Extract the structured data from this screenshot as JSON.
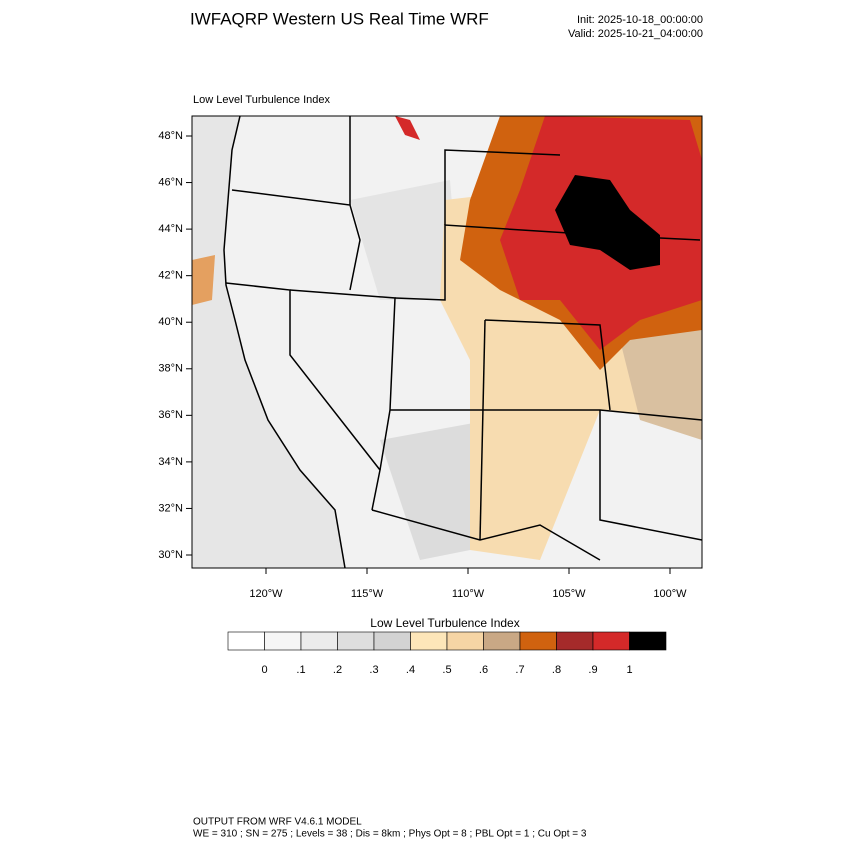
{
  "title": "IWFAQRP Western US Real Time WRF",
  "init": "Init: 2025-10-18_00:00:00",
  "valid": "Valid: 2025-10-21_04:00:00",
  "map": {
    "title": "Low Level Turbulence Index",
    "lat_ticks": [
      {
        "value": 30,
        "label": "30°N"
      },
      {
        "value": 32,
        "label": "32°N"
      },
      {
        "value": 34,
        "label": "34°N"
      },
      {
        "value": 36,
        "label": "36°N"
      },
      {
        "value": 38,
        "label": "38°N"
      },
      {
        "value": 40,
        "label": "40°N"
      },
      {
        "value": 42,
        "label": "42°N"
      },
      {
        "value": 44,
        "label": "44°N"
      },
      {
        "value": 46,
        "label": "46°N"
      },
      {
        "value": 48,
        "label": "48°N"
      }
    ],
    "lon_ticks": [
      {
        "value": -120,
        "label": "120°W"
      },
      {
        "value": -115,
        "label": "115°W"
      },
      {
        "value": -110,
        "label": "110°W"
      },
      {
        "value": -105,
        "label": "105°W"
      },
      {
        "value": -100,
        "label": "100°W"
      }
    ]
  },
  "colorbar": {
    "title": "Low Level Turbulence Index",
    "colors": [
      "#ffffff",
      "#f6f6f6",
      "#ececec",
      "#dedede",
      "#d3d3d3",
      "#fde6b9",
      "#f6d5a5",
      "#c9a885",
      "#d0620f",
      "#a52a2a",
      "#d42929",
      "#000000"
    ],
    "levels": [
      0,
      {
        "value": 0.1,
        "label": ".1"
      },
      {
        "value": 0.2,
        "label": ".2"
      },
      {
        "value": 0.3,
        "label": ".3"
      },
      {
        "value": 0.4,
        "label": ".4"
      },
      {
        "value": 0.5,
        "label": ".5"
      },
      {
        "value": 0.6,
        "label": ".6"
      },
      {
        "value": 0.7,
        "label": ".7"
      },
      {
        "value": 0.8,
        "label": ".8"
      },
      {
        "value": 0.9,
        "label": ".9"
      },
      1
    ]
  },
  "footer": [
    "OUTPUT FROM WRF V4.6.1 MODEL",
    "WE = 310 ; SN = 275 ; Levels = 38 ; Dis = 8km ; Phys Opt = 8 ; PBL Opt = 1 ; Cu Opt = 3"
  ]
}
